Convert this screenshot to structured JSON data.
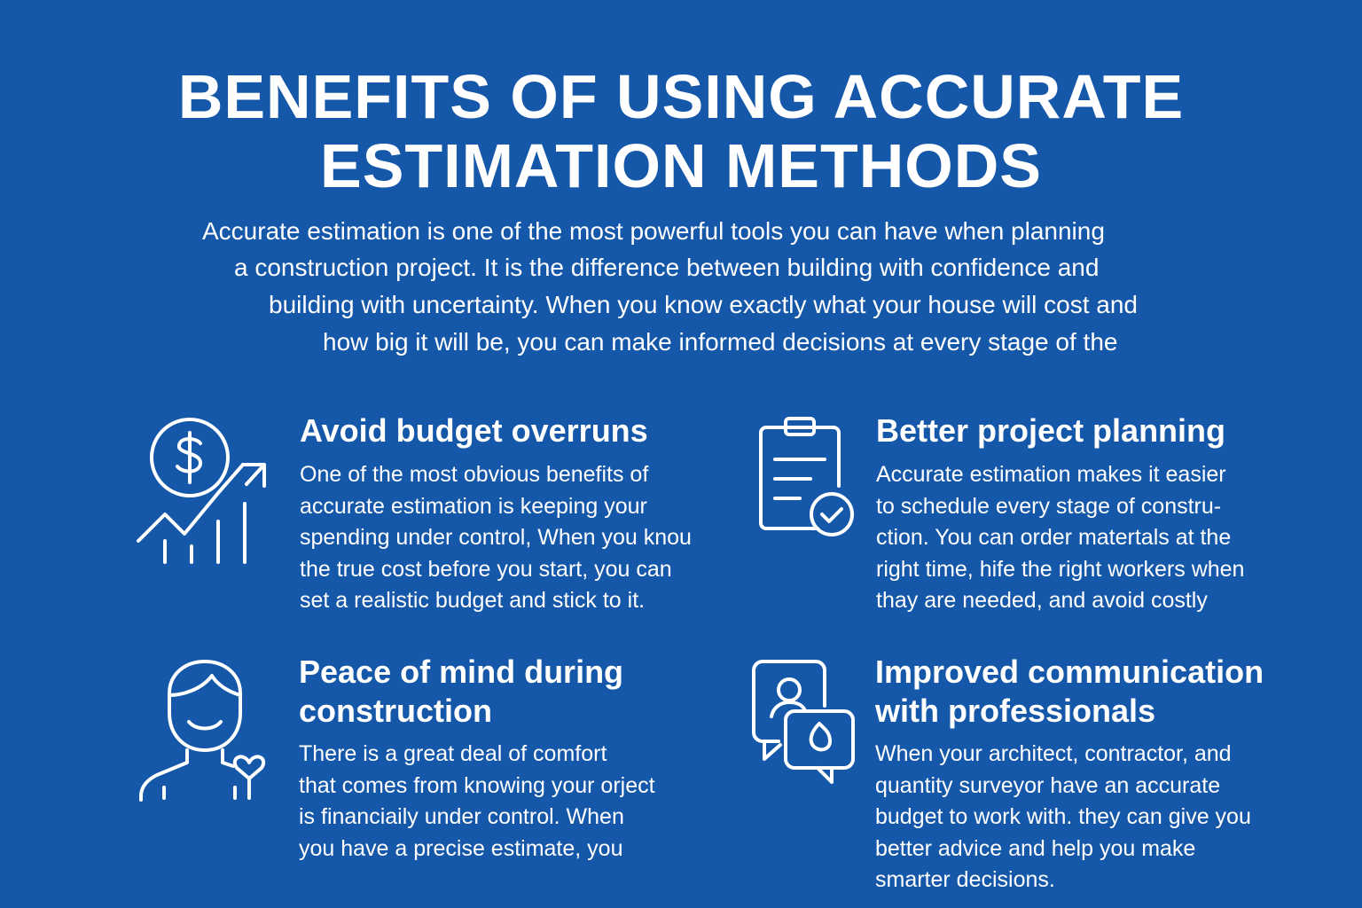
{
  "title": {
    "line1": "BENEFITS OF USING ACCURATE",
    "line2": "ESTIMATION METHODS"
  },
  "intro": [
    "Accurate estimation is one of the most powerful tools you can have when planning",
    "a construction project. It is the difference between building with confidence and",
    "building with uncertainty. When you know exactly what your house will cost and",
    "how big it will be, you can make informed decisions at every stage of the"
  ],
  "benefits": [
    {
      "icon": "dollar-growth-chart-icon",
      "heading": [
        "Avoid budget overruns"
      ],
      "body": [
        "One of the most obvious benefits of",
        "accurate estimation is keeping your",
        "spending under control, When you knou",
        "the true cost before you start, you can",
        "set a realistic budget and stick to it."
      ]
    },
    {
      "icon": "clipboard-check-icon",
      "heading": [
        "Better project planning"
      ],
      "body": [
        "Accurate estimation makes it easier",
        "to schedule every stage of constru-",
        "ction. You can order matertals at the",
        "right time, hife the right workers when",
        "thay are needed, and avoid costly"
      ]
    },
    {
      "icon": "person-heart-icon",
      "heading": [
        "Peace of mind during",
        "construction"
      ],
      "body": [
        "There is a great deal of comfort",
        "that comes from knowing your orject",
        "is financiaily under control. When",
        "you have a precise estimate, you"
      ]
    },
    {
      "icon": "chat-bubbles-icon",
      "heading": [
        "Improved communication",
        "with professionals"
      ],
      "body": [
        "When your architect, contractor, and",
        "quantity surveyor have an accurate",
        "budget to work with. they can give you",
        "better advice and help you make",
        "smarter decisions."
      ]
    }
  ],
  "colors": {
    "background": "#1557a8",
    "text": "#ffffff"
  }
}
